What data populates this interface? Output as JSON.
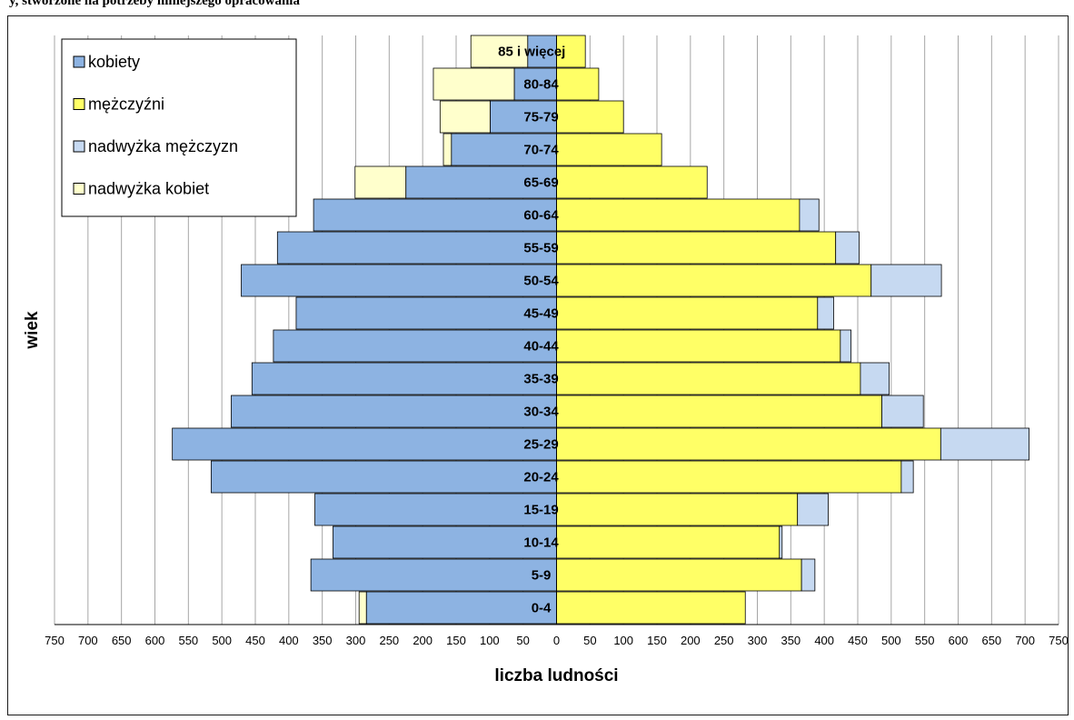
{
  "page": {
    "title_fragment": "y, stworzone na potrzeby niniejszego opracowania"
  },
  "colors": {
    "kobiety": "#8db3e2",
    "mezczyzni": "#ffff66",
    "nadwyzka_mezczyzn": "#c6d9f1",
    "nadwyzka_kobiet": "#ffffcc",
    "grid": "#a6a6a6",
    "border": "#1a1a1a"
  },
  "chart_data": {
    "type": "bar",
    "orientation": "horizontal",
    "subtype": "population-pyramid",
    "xlabel": "liczba ludności",
    "ylabel": "wiek",
    "xlim": [
      -750,
      750
    ],
    "xticks": [
      -750,
      -700,
      -650,
      -600,
      -550,
      -500,
      -450,
      -400,
      -350,
      -300,
      -250,
      -200,
      -150,
      -100,
      -50,
      0,
      50,
      100,
      150,
      200,
      250,
      300,
      350,
      400,
      450,
      500,
      550,
      600,
      650,
      700,
      750
    ],
    "xtick_labels": [
      "750",
      "700",
      "650",
      "600",
      "550",
      "500",
      "450",
      "400",
      "350",
      "300",
      "250",
      "200",
      "150",
      "100",
      "50",
      "0",
      "50",
      "100",
      "150",
      "200",
      "250",
      "300",
      "350",
      "400",
      "450",
      "500",
      "550",
      "600",
      "650",
      "700",
      "750"
    ],
    "grid": true,
    "legend_position": "top-left",
    "categories": [
      "0-4",
      "5-9",
      "10-14",
      "15-19",
      "20-24",
      "25-29",
      "30-34",
      "35-39",
      "40-44",
      "45-49",
      "50-54",
      "55-59",
      "60-64",
      "65-69",
      "70-74",
      "75-79",
      "80-84",
      "85 i więcej"
    ],
    "legend": [
      {
        "label": "kobiety",
        "color_key": "kobiety"
      },
      {
        "label": "mężczyźni",
        "color_key": "mezczyzni"
      },
      {
        "label": "nadwyżka mężczyzn",
        "color_key": "nadwyzka_mezczyzn"
      },
      {
        "label": "nadwyżka kobiet",
        "color_key": "nadwyzka_kobiet"
      }
    ],
    "series": [
      {
        "name": "kobiety",
        "values": [
          284,
          367,
          334,
          361,
          516,
          574,
          486,
          455,
          423,
          389,
          471,
          417,
          363,
          225,
          157,
          99,
          63,
          43
        ]
      },
      {
        "name": "mężczyźni",
        "values": [
          282,
          366,
          333,
          360,
          515,
          574,
          486,
          454,
          424,
          390,
          470,
          417,
          363,
          225,
          157,
          100,
          63,
          43
        ]
      },
      {
        "name": "nadwyżka mężczyzn",
        "values": [
          0,
          20,
          4,
          46,
          18,
          132,
          62,
          43,
          16,
          24,
          105,
          35,
          29,
          0,
          0,
          0,
          0,
          0
        ]
      },
      {
        "name": "nadwyżka kobiet",
        "values": [
          11,
          0,
          0,
          0,
          0,
          0,
          0,
          0,
          0,
          0,
          0,
          0,
          0,
          76,
          12,
          75,
          121,
          85
        ]
      }
    ]
  }
}
